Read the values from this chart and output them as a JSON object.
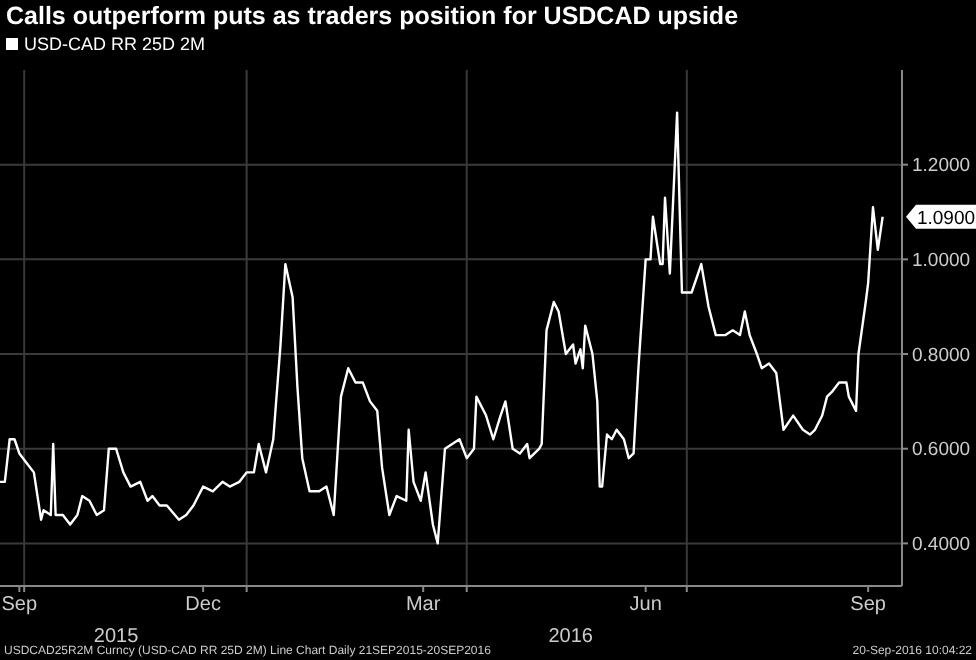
{
  "chart_data": {
    "type": "line",
    "title": "Calls outperform puts as traders position for USDCAD upside",
    "x": [
      "2015-09-21",
      "2015-09-23",
      "2015-09-25",
      "2015-09-27",
      "2015-09-29",
      "2015-10-02",
      "2015-10-05",
      "2015-10-08",
      "2015-10-09",
      "2015-10-12",
      "2015-10-13",
      "2015-10-14",
      "2015-10-17",
      "2015-10-20",
      "2015-10-23",
      "2015-10-25",
      "2015-10-28",
      "2015-10-31",
      "2015-11-03",
      "2015-11-05",
      "2015-11-08",
      "2015-11-11",
      "2015-11-14",
      "2015-11-18",
      "2015-11-21",
      "2015-11-23",
      "2015-11-26",
      "2015-11-29",
      "2015-12-04",
      "2015-12-07",
      "2015-12-10",
      "2015-12-14",
      "2015-12-18",
      "2015-12-22",
      "2015-12-25",
      "2015-12-29",
      "2016-01-01",
      "2016-01-04",
      "2016-01-06",
      "2016-01-09",
      "2016-01-12",
      "2016-01-15",
      "2016-01-17",
      "2016-01-20",
      "2016-01-22",
      "2016-01-24",
      "2016-01-27",
      "2016-01-31",
      "2016-02-03",
      "2016-02-06",
      "2016-02-09",
      "2016-02-12",
      "2016-02-15",
      "2016-02-18",
      "2016-02-21",
      "2016-02-24",
      "2016-02-26",
      "2016-02-29",
      "2016-03-03",
      "2016-03-07",
      "2016-03-08",
      "2016-03-10",
      "2016-03-13",
      "2016-03-15",
      "2016-03-18",
      "2016-03-20",
      "2016-03-23",
      "2016-03-26",
      "2016-03-29",
      "2016-04-01",
      "2016-04-04",
      "2016-04-05",
      "2016-04-09",
      "2016-04-12",
      "2016-04-15",
      "2016-04-17",
      "2016-04-20",
      "2016-04-23",
      "2016-04-26",
      "2016-04-27",
      "2016-05-01",
      "2016-05-02",
      "2016-05-04",
      "2016-05-07",
      "2016-05-09",
      "2016-05-12",
      "2016-05-15",
      "2016-05-16",
      "2016-05-18",
      "2016-05-19",
      "2016-05-20",
      "2016-05-23",
      "2016-05-25",
      "2016-05-26",
      "2016-05-27",
      "2016-05-29",
      "2016-05-31",
      "2016-06-02",
      "2016-06-05",
      "2016-06-07",
      "2016-06-09",
      "2016-06-11",
      "2016-06-14",
      "2016-06-16",
      "2016-06-17",
      "2016-06-20",
      "2016-06-21",
      "2016-06-22",
      "2016-06-24",
      "2016-06-27",
      "2016-06-29",
      "2016-07-03",
      "2016-07-07",
      "2016-07-10",
      "2016-07-13",
      "2016-07-17",
      "2016-07-20",
      "2016-07-23",
      "2016-07-25",
      "2016-07-27",
      "2016-07-30",
      "2016-08-01",
      "2016-08-04",
      "2016-08-07",
      "2016-08-10",
      "2016-08-14",
      "2016-08-18",
      "2016-08-21",
      "2016-08-23",
      "2016-08-26",
      "2016-08-28",
      "2016-08-30",
      "2016-09-02",
      "2016-09-05",
      "2016-09-06",
      "2016-09-09",
      "2016-09-10",
      "2016-09-13",
      "2016-09-14",
      "2016-09-16",
      "2016-09-18",
      "2016-09-20"
    ],
    "series": [
      {
        "name": "USD-CAD RR 25D 2M",
        "color": "#ffffff",
        "values": [
          0.53,
          0.53,
          0.62,
          0.62,
          0.59,
          0.57,
          0.55,
          0.45,
          0.47,
          0.46,
          0.61,
          0.46,
          0.46,
          0.44,
          0.46,
          0.5,
          0.49,
          0.46,
          0.47,
          0.6,
          0.6,
          0.55,
          0.52,
          0.53,
          0.49,
          0.5,
          0.48,
          0.48,
          0.45,
          0.46,
          0.48,
          0.52,
          0.51,
          0.53,
          0.52,
          0.53,
          0.55,
          0.55,
          0.61,
          0.55,
          0.62,
          0.82,
          0.99,
          0.92,
          0.73,
          0.58,
          0.51,
          0.51,
          0.52,
          0.46,
          0.71,
          0.77,
          0.74,
          0.74,
          0.7,
          0.68,
          0.56,
          0.46,
          0.5,
          0.49,
          0.64,
          0.53,
          0.49,
          0.55,
          0.44,
          0.4,
          0.6,
          0.61,
          0.62,
          0.58,
          0.6,
          0.71,
          0.67,
          0.62,
          0.67,
          0.7,
          0.6,
          0.59,
          0.61,
          0.58,
          0.6,
          0.61,
          0.85,
          0.91,
          0.89,
          0.8,
          0.82,
          0.78,
          0.81,
          0.77,
          0.86,
          0.8,
          0.7,
          0.52,
          0.52,
          0.63,
          0.62,
          0.64,
          0.62,
          0.58,
          0.59,
          0.77,
          1.0,
          1.0,
          1.09,
          0.99,
          0.99,
          1.13,
          0.97,
          1.31,
          0.93,
          0.93,
          0.99,
          0.9,
          0.84,
          0.84,
          0.85,
          0.84,
          0.89,
          0.84,
          0.8,
          0.77,
          0.78,
          0.76,
          0.64,
          0.67,
          0.64,
          0.63,
          0.64,
          0.67,
          0.71,
          0.72,
          0.74,
          0.74,
          0.71,
          0.68,
          0.8,
          0.91,
          0.95,
          1.11,
          1.02,
          1.09
        ]
      }
    ],
    "xlim": [
      "2015-09-21",
      "2016-09-28"
    ],
    "xticks": [
      {
        "value": "2015-09-29",
        "label": "Sep"
      },
      {
        "value": "2015-10-01",
        "label": null
      },
      {
        "value": "2015-12-14",
        "label": "Dec"
      },
      {
        "value": "2016-01-01",
        "label": null
      },
      {
        "value": "2016-03-14",
        "label": "Mar"
      },
      {
        "value": "2016-04-01",
        "label": null
      },
      {
        "value": "2016-06-14",
        "label": "Jun"
      },
      {
        "value": "2016-07-01",
        "label": null
      },
      {
        "value": "2016-09-14",
        "label": "Sep"
      }
    ],
    "x2lim": [
      "2015-09-21",
      "2016-09-28"
    ],
    "x2ticks": [
      {
        "value": "2015-11-08",
        "label": "2015"
      },
      {
        "value": "2016-05-14",
        "label": "2016"
      }
    ],
    "ylim": [
      0.31,
      1.4
    ],
    "yticks": [
      {
        "value": 0.4,
        "label": "0.4000"
      },
      {
        "value": 0.6,
        "label": "0.6000"
      },
      {
        "value": 0.8,
        "label": "0.8000"
      },
      {
        "value": 1.0,
        "label": "1.0000"
      },
      {
        "value": 1.2,
        "label": "1.2000"
      }
    ],
    "grid": true,
    "legend": "top left",
    "annotations": [
      "USDCAD25R2M Curncy (USD-CAD RR 25D 2M) Line Chart  Daily 21SEP2015-20SEP2016",
      "20-Sep-2016 10:04:22",
      {
        "text": "1.0900",
        "x": "2016-09-20",
        "y": 1.09
      }
    ]
  }
}
